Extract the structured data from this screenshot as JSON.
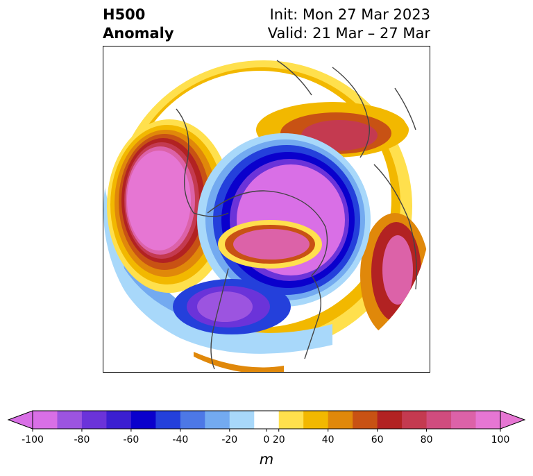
{
  "title": {
    "line1": "H500",
    "line2": "Anomaly"
  },
  "info": {
    "init": "Init: Mon 27 Mar 2023",
    "valid": "Valid: 21 Mar – 27 Mar"
  },
  "map": {
    "projection": "north-polar-stereographic",
    "field": "500 hPa geopotential height anomaly",
    "features": [
      {
        "name": "strong positive anomaly over North Pacific",
        "value": 100
      },
      {
        "name": "negative anomaly ring around Arctic",
        "value": -100
      },
      {
        "name": "negative anomaly over western North America",
        "value": -100
      },
      {
        "name": "positive anomaly over central Arctic / Greenland",
        "value": 80
      },
      {
        "name": "positive anomaly over northern Europe",
        "value": 80
      },
      {
        "name": "positive anomaly over eastern Asia",
        "value": 90
      }
    ]
  },
  "colorbar": {
    "levels": [
      -100,
      -90,
      -80,
      -70,
      -60,
      -50,
      -40,
      -30,
      -20,
      -10,
      10,
      20,
      30,
      40,
      50,
      60,
      70,
      80,
      90,
      100
    ],
    "colors": [
      "#d96fe6",
      "#9c54e0",
      "#6b33d9",
      "#3b1fd1",
      "#0a00cc",
      "#2440db",
      "#4d78e6",
      "#73aaf0",
      "#a8d8fa",
      "#ffffff",
      "#ffe04d",
      "#f2b800",
      "#e0880a",
      "#c85214",
      "#b22222",
      "#c43a50",
      "#d04c7e",
      "#dc62a8",
      "#e676d3"
    ],
    "under_color": "#d96fe6",
    "over_color": "#e676d3",
    "tick_labels": [
      "-100",
      "-80",
      "-60",
      "-40",
      "-20",
      "0",
      "20",
      "40",
      "60",
      "80",
      "100"
    ],
    "unit": "m",
    "extend": "both"
  }
}
